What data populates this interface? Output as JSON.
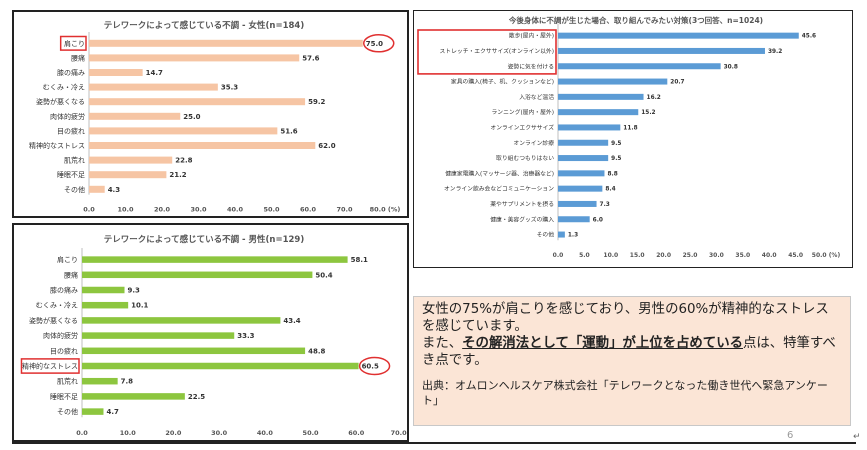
{
  "chart_data": [
    {
      "id": "female",
      "type": "bar",
      "orientation": "horizontal",
      "title": "テレワークによって感じている不調 - 女性(n=184)",
      "categories": [
        "肩こり",
        "腰痛",
        "膝の痛み",
        "むくみ・冷え",
        "姿勢が悪くなる",
        "肉体的疲労",
        "目の疲れ",
        "精神的なストレス",
        "肌荒れ",
        "睡眠不足",
        "その他"
      ],
      "values": [
        75.0,
        57.6,
        14.7,
        35.3,
        59.2,
        25.0,
        51.6,
        62.0,
        22.8,
        21.2,
        4.3
      ],
      "value_labels": [
        "75.0",
        "57.6",
        "14.7",
        "35.3",
        "59.2",
        "25.0",
        "51.6",
        "62.0",
        "22.8",
        "21.2",
        "4.3"
      ],
      "xlim": [
        0,
        80
      ],
      "xticks": [
        "0.0",
        "10.0",
        "20.0",
        "30.0",
        "40.0",
        "50.0",
        "60.0",
        "70.0",
        "80.0 (%)"
      ],
      "color": "#f6c5a4",
      "highlight_category": "肩こり",
      "highlight_value": "75.0",
      "grid": false
    },
    {
      "id": "male",
      "type": "bar",
      "orientation": "horizontal",
      "title": "テレワークによって感じている不調 - 男性(n=129)",
      "categories": [
        "肩こり",
        "腰痛",
        "膝の痛み",
        "むくみ・冷え",
        "姿勢が悪くなる",
        "肉体的疲労",
        "目の疲れ",
        "精神的なストレス",
        "肌荒れ",
        "睡眠不足",
        "その他"
      ],
      "values": [
        58.1,
        50.4,
        9.3,
        10.1,
        43.4,
        33.3,
        48.8,
        60.5,
        7.8,
        22.5,
        4.7
      ],
      "value_labels": [
        "58.1",
        "50.4",
        "9.3",
        "10.1",
        "43.4",
        "33.3",
        "48.8",
        "60.5",
        "7.8",
        "22.5",
        "4.7"
      ],
      "xlim": [
        0,
        70
      ],
      "xticks": [
        "0.0",
        "10.0",
        "20.0",
        "30.0",
        "40.0",
        "50.0",
        "60.0",
        "70.0 (%)"
      ],
      "color": "#8dc63f",
      "highlight_category": "精神的なストレス",
      "highlight_value": "60.5",
      "grid": false
    },
    {
      "id": "measures",
      "type": "bar",
      "orientation": "horizontal",
      "title": "今後身体に不調が生じた場合、取り組んでみたい対策(3つ回答、n=1024)",
      "categories": [
        "散歩(屋内・屋外)",
        "ストレッチ・エクササイズ(オンライン以外)",
        "姿勢に気を付ける",
        "家具の購入(椅子、机、クッションなど)",
        "入浴など温活",
        "ランニング(屋内・屋外)",
        "オンラインエクササイズ",
        "オンライン診療",
        "取り組むつもりはない",
        "健康家電購入(マッサージ器、治療器など)",
        "オンライン飲み会などコミュニケーション",
        "薬やサプリメントを摂る",
        "健康・美容グッズの購入",
        "その他"
      ],
      "values": [
        45.6,
        39.2,
        30.8,
        20.7,
        16.2,
        15.2,
        11.8,
        9.5,
        9.5,
        8.8,
        8.4,
        7.3,
        6.0,
        1.3
      ],
      "value_labels": [
        "45.6",
        "39.2",
        "30.8",
        "20.7",
        "16.2",
        "15.2",
        "11.8",
        "9.5",
        "9.5",
        "8.8",
        "8.4",
        "7.3",
        "6.0",
        "1.3"
      ],
      "xlim": [
        0,
        50
      ],
      "xticks": [
        "0.0",
        "5.0",
        "10.0",
        "15.0",
        "20.0",
        "25.0",
        "30.0",
        "35.0",
        "40.0",
        "45.0",
        "50.0 (%)"
      ],
      "color": "#5b9bd5",
      "highlight_categories": [
        "散歩(屋内・屋外)",
        "ストレッチ・エクササイズ(オンライン以外)",
        "姿勢に気を付ける"
      ],
      "grid": false
    }
  ],
  "highlight_color": "#e03030",
  "summary": {
    "line1": "女性の75%が肩こりを感じており、男性の60%が精神的なストレスを感じています。",
    "line2_prefix": "また、",
    "line2_bold": "その解消法として「運動」が上位を占めている",
    "line2_suffix": "点は、特筆すべき点です。",
    "source": "出典：オムロンヘルスケア株式会社「テレワークとなった働き世代へ緊急アンケート」"
  },
  "page_number": "6",
  "return_mark": "↵"
}
